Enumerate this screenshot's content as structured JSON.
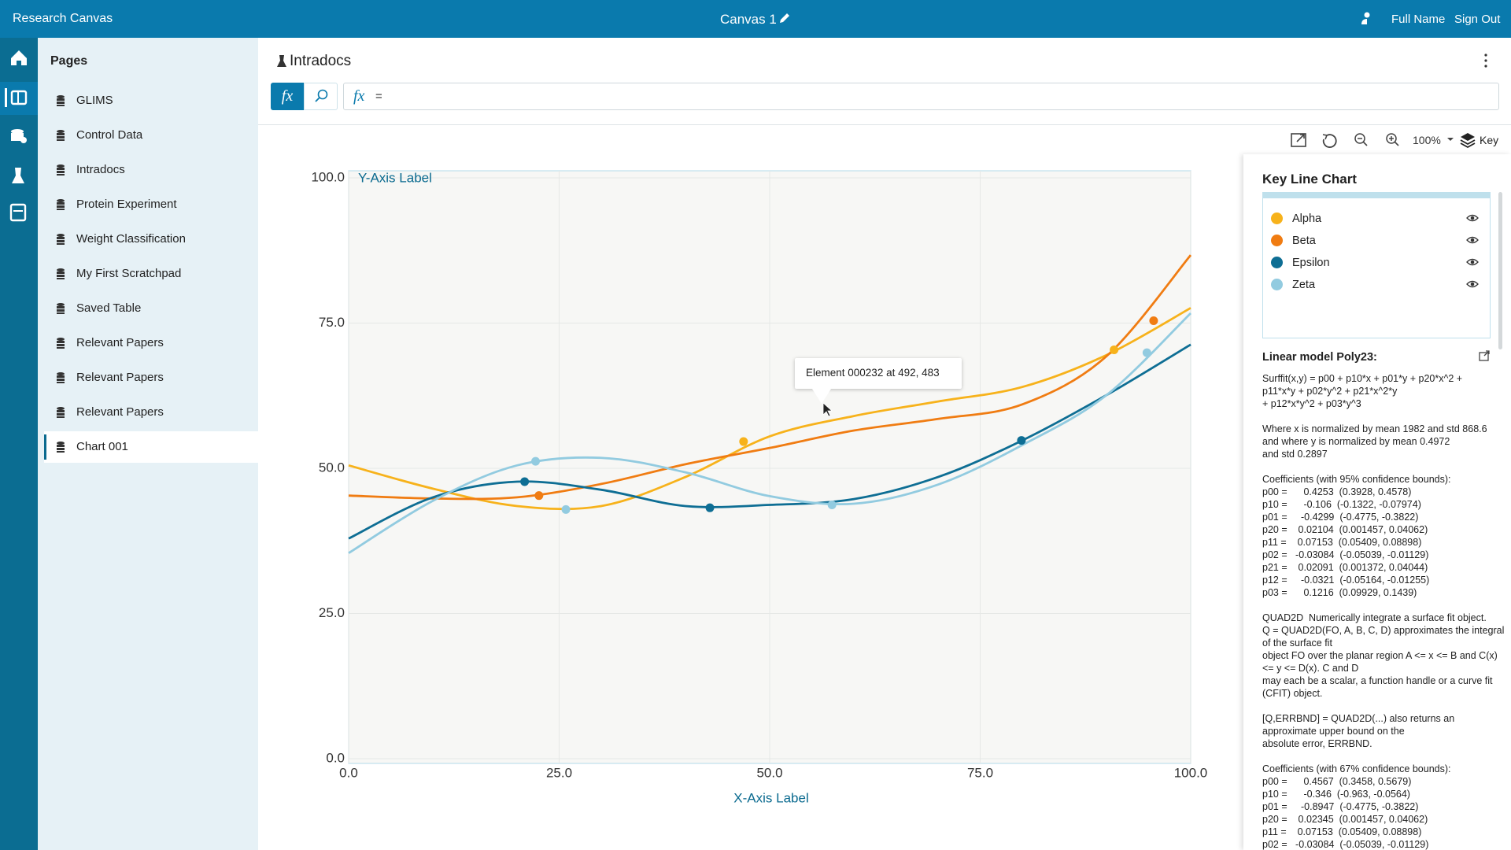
{
  "top_bar": {
    "app_title": "Research Canvas",
    "canvas_title": "Canvas 1",
    "user_name": "Full Name",
    "sign_out": "Sign Out"
  },
  "sidebar": {
    "title": "Pages",
    "items": [
      "GLIMS",
      "Control Data",
      "Intradocs",
      "Protein Experiment",
      "Weight Classification",
      "My First Scratchpad",
      "Saved Table",
      "Relevant Papers",
      "Relevant Papers",
      "Relevant Papers",
      "Chart 001"
    ]
  },
  "page": {
    "title": "Intradocs",
    "formula": "="
  },
  "toolbar": {
    "zoom": "100%",
    "key": "Key"
  },
  "tooltip": "Element 000232 at 492, 483",
  "key_panel": {
    "title": "Key Line Chart",
    "model_title": "Linear model Poly23:",
    "paragraphs": [
      [
        "Surffit(x,y) = p00 + p10*x + p01*y + p20*x^2 +",
        "p11*x*y + p02*y^2 + p21*x^2*y",
        "+ p12*x*y^2 + p03*y^3"
      ],
      [
        "Where x is normalized by mean 1982 and std 868.6",
        "and where y is normalized by mean 0.4972",
        "and std 0.2897"
      ],
      [
        "Coefficients (with 95% confidence bounds):",
        "p00 =      0.4253  (0.3928, 0.4578)",
        "p10 =      -0.106  (-0.1322, -0.07974)",
        "p01 =     -0.4299  (-0.4775, -0.3822)",
        "p20 =    0.02104  (0.001457, 0.04062)",
        "p11 =    0.07153  (0.05409, 0.08898)",
        "p02 =   -0.03084  (-0.05039, -0.01129)",
        "p21 =    0.02091  (0.001372, 0.04044)",
        "p12 =     -0.0321  (-0.05164, -0.01255)",
        "p03 =      0.1216  (0.09929, 0.1439)"
      ],
      [
        "QUAD2D  Numerically integrate a surface fit object.",
        "Q = QUAD2D(FO, A, B, C, D) approximates the integral",
        "of the surface fit",
        "object FO over the planar region A <= x <= B and C(x)",
        "<= y <= D(x). C and D",
        "may each be a scalar, a function handle or a curve fit",
        "(CFIT) object."
      ],
      [
        "[Q,ERRBND] = QUAD2D(...) also returns an",
        "approximate upper bound on the",
        "absolute error, ERRBND."
      ],
      [
        "Coefficients (with 67% confidence bounds):",
        "p00 =      0.4567  (0.3458, 0.5679)",
        "p10 =      -0.346  (-0.963, -0.0564)",
        "p01 =     -0.8947  (-0.4775, -0.3822)",
        "p20 =    0.02345  (0.001457, 0.04062)",
        "p11 =    0.07153  (0.05409, 0.08898)",
        "p02 =   -0.03084  (-0.05039, -0.01129)"
      ]
    ]
  },
  "chart_data": {
    "type": "line",
    "x_label": "X-Axis Label",
    "y_label": "Y-Axis Label",
    "x": [
      0,
      10,
      20,
      30,
      40,
      50,
      60,
      70,
      80,
      90,
      100
    ],
    "xlim": [
      0,
      100
    ],
    "ylim": [
      0,
      100
    ],
    "xticks": [
      {
        "value": 0,
        "label": "0.0"
      },
      {
        "value": 25,
        "label": "25.0"
      },
      {
        "value": 50,
        "label": "50.0"
      },
      {
        "value": 75,
        "label": "75.0"
      },
      {
        "value": 100,
        "label": "100.0"
      }
    ],
    "yticks": [
      {
        "value": 0,
        "label": "0.0"
      },
      {
        "value": 25,
        "label": "25.0"
      },
      {
        "value": 50,
        "label": "50.0"
      },
      {
        "value": 75,
        "label": "75.0"
      },
      {
        "value": 100,
        "label": "100.0"
      }
    ],
    "grid": true,
    "series": [
      {
        "name": "Alpha",
        "color": "#f7b21b",
        "values": [
          50.5,
          46.5,
          43.5,
          43.5,
          48.5,
          55.5,
          59,
          61.5,
          64,
          69.5,
          77.6
        ],
        "markers": {
          "x": [
            46.9,
            90.9
          ],
          "values": [
            54.6,
            70.4
          ]
        }
      },
      {
        "name": "Beta",
        "color": "#f07c12",
        "values": [
          45.3,
          44.8,
          45,
          47.3,
          50.7,
          53.5,
          56.5,
          58.5,
          61,
          69.3,
          86.7
        ],
        "markers": {
          "x": [
            22.6,
            95.6
          ],
          "values": [
            45.3,
            75.4
          ]
        }
      },
      {
        "name": "Epsilon",
        "color": "#0e6e94",
        "values": [
          37.9,
          45,
          47.7,
          46.3,
          43.5,
          43.7,
          44.7,
          48.5,
          54.8,
          62.6,
          71.3
        ],
        "markers": {
          "x": [
            20.9,
            42.9,
            79.9
          ],
          "values": [
            47.7,
            43.2,
            54.8
          ]
        }
      },
      {
        "name": "Zeta",
        "color": "#92cbe0",
        "values": [
          35.4,
          44.4,
          50.5,
          51.8,
          49.3,
          45.2,
          43.9,
          47.2,
          54,
          62.6,
          76.7
        ],
        "markers": {
          "x": [
            22.2,
            25.8,
            57.4,
            94.8
          ],
          "values": [
            51.2,
            42.9,
            43.7,
            69.9
          ]
        }
      }
    ]
  }
}
